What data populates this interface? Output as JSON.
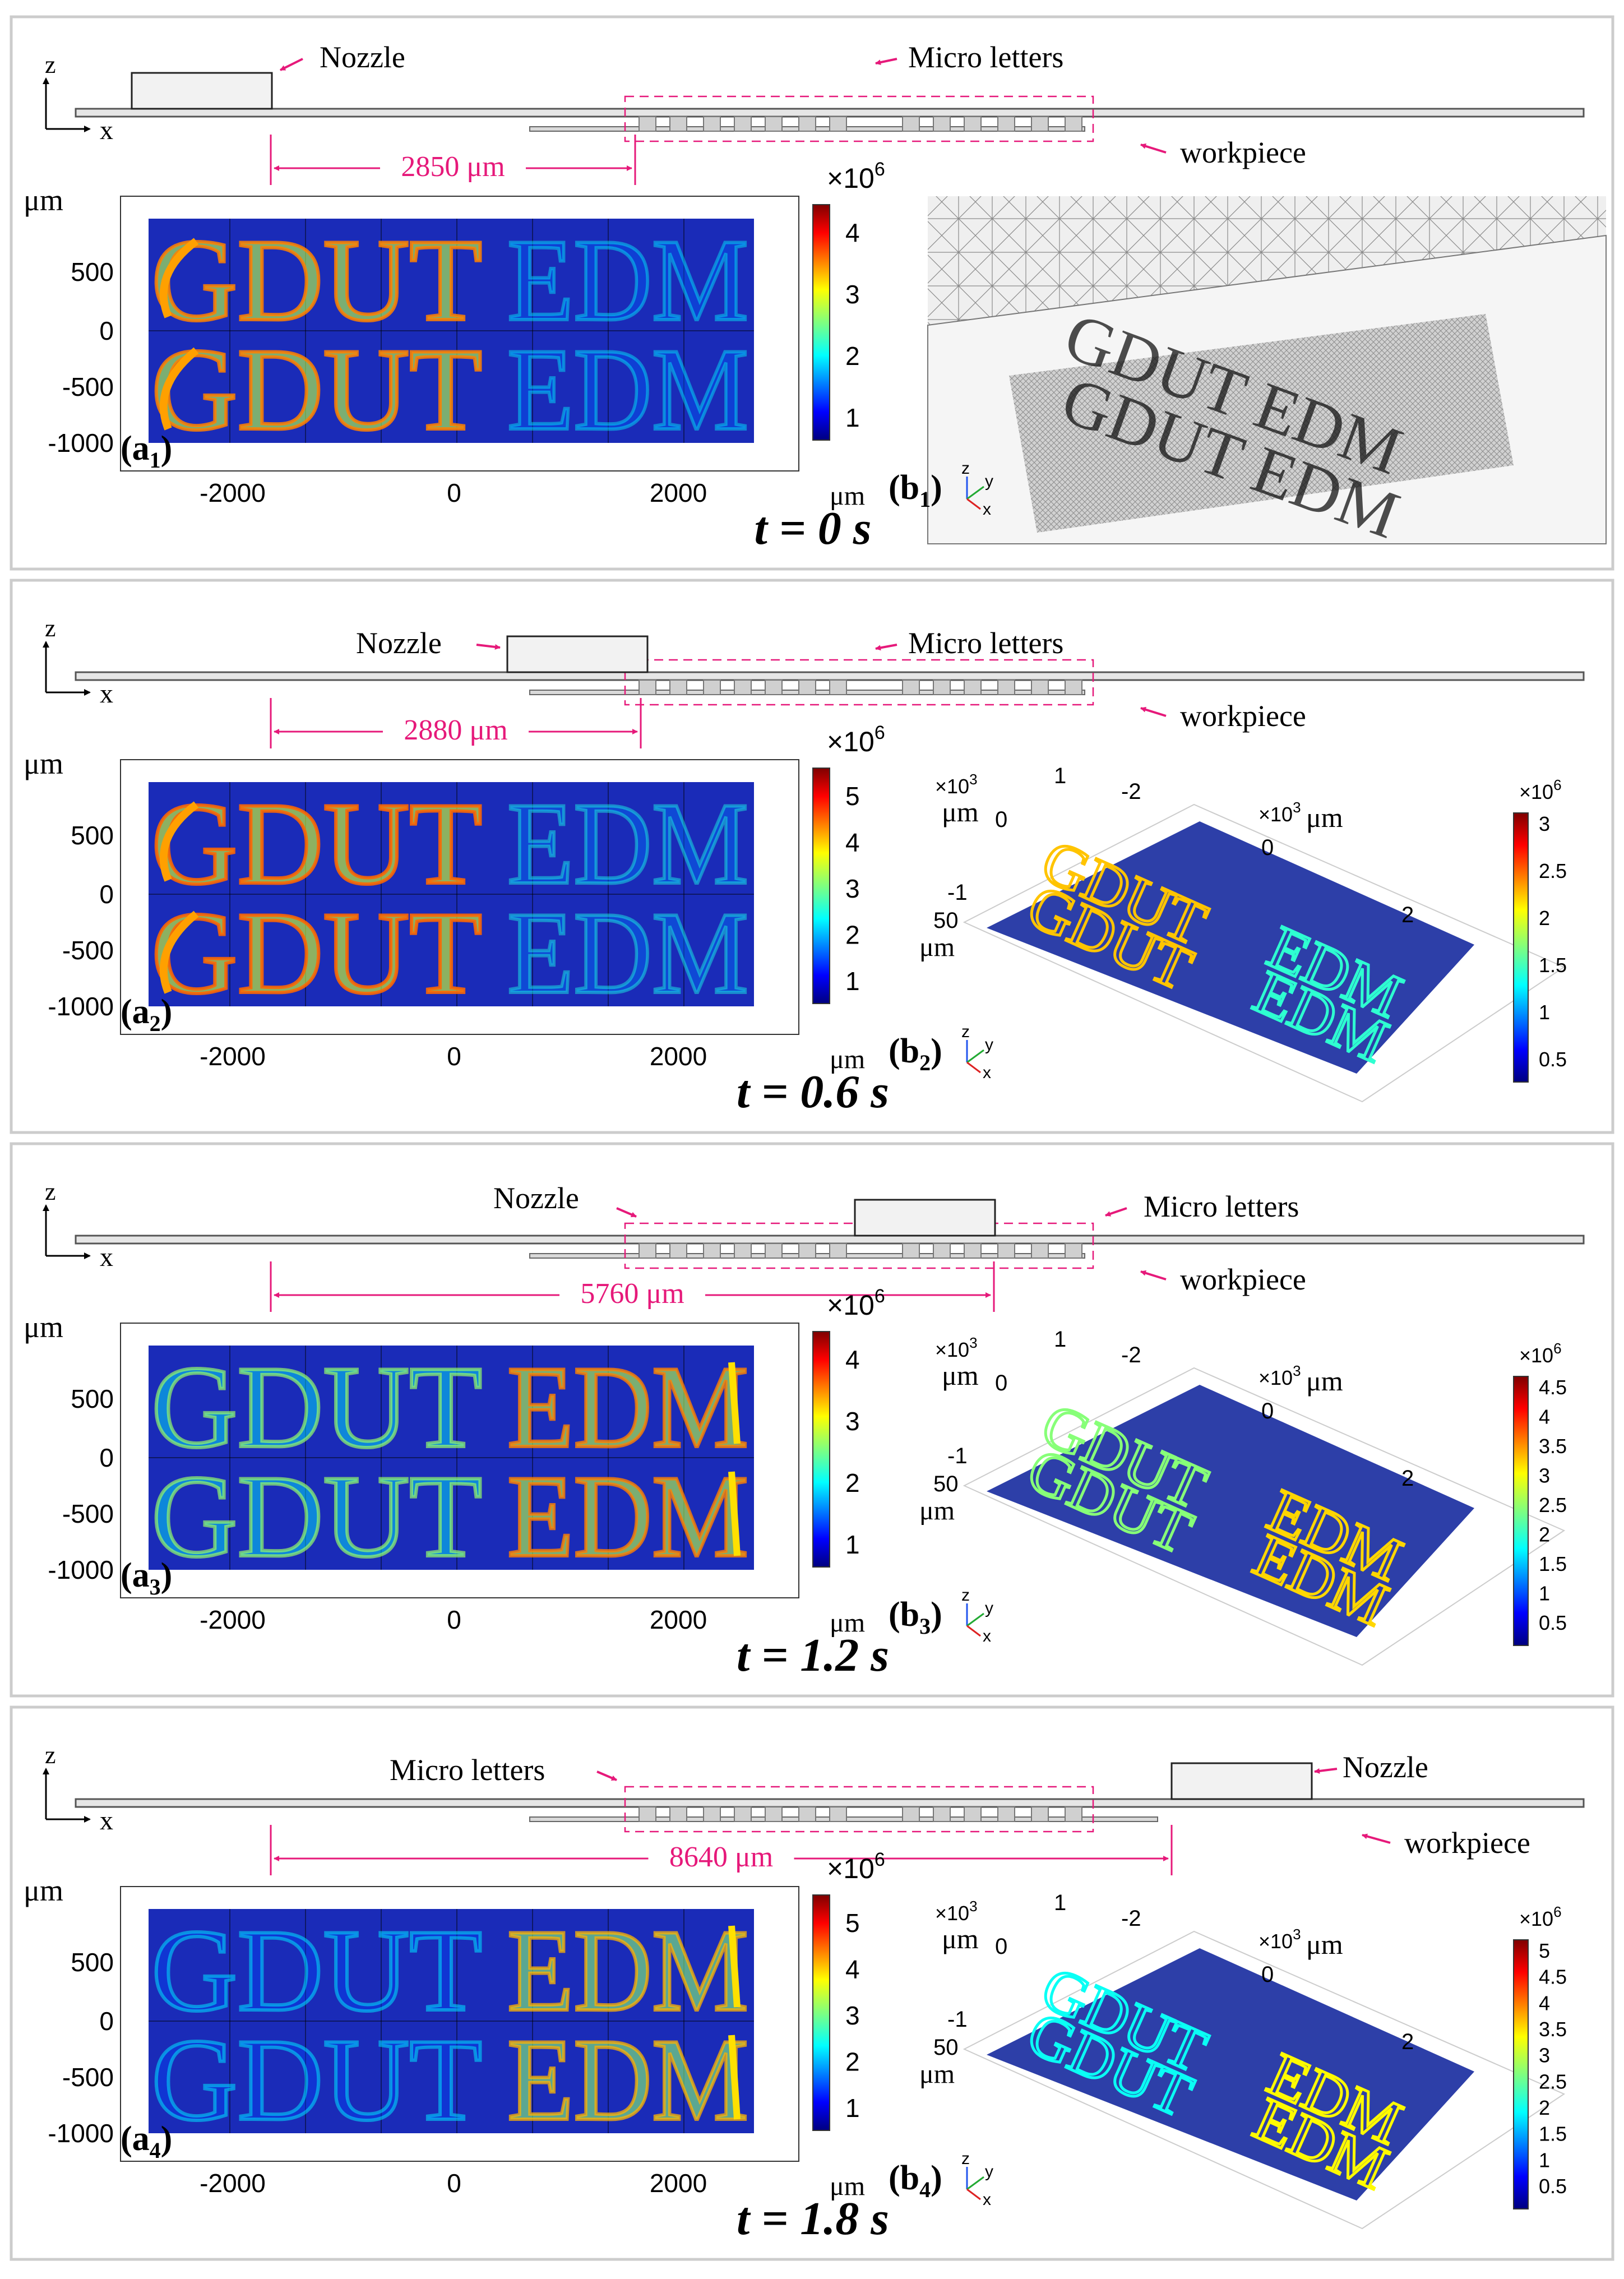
{
  "figure": {
    "nozzle_label": "Nozzle",
    "letters_label": "Micro letters",
    "workpiece_label": "workpiece",
    "axis_z": "z",
    "axis_x": "x",
    "unit_um": "μm",
    "exp_6": "×10",
    "exp_6_power": "6",
    "exp_3": "×10",
    "exp_3_power": "3",
    "map_yticks": [
      "500",
      "0",
      "-500",
      "-1000"
    ],
    "map_xticks": [
      "-2000",
      "0",
      "2000"
    ],
    "tri_x": "x",
    "tri_y": "y",
    "tri_z": "z",
    "text_row1": "GDUT",
    "text_row2": "EDM",
    "persp_ticks": {
      "t1": "1",
      "t0": "0",
      "tm1": "-1",
      "t50": "50",
      "tm2": "-2",
      "tr0": "0",
      "tr2": "2"
    },
    "time_prefix": "t",
    "time_eq": "=",
    "time_unit": "s",
    "colors": {
      "accent": "#e6197a",
      "map_bg": "#1a2bb8",
      "frame": "#cccccc"
    }
  },
  "panels": [
    {
      "id": 1,
      "dist_label": "2850 μm",
      "time_value": "0",
      "label_a": "a",
      "label_b": "b",
      "label_sub": "1",
      "colorbar_ticks": [
        "4",
        "3",
        "2",
        "1"
      ],
      "nozzle_pos_mm": 0.0,
      "gdut_intensity": 0.9,
      "edm_intensity": 0.15,
      "right_kind": "mesh"
    },
    {
      "id": 2,
      "dist_label": "2880 μm",
      "time_value": "0.6",
      "label_a": "a",
      "label_b": "b",
      "label_sub": "2",
      "colorbar_ticks": [
        "5",
        "4",
        "3",
        "2",
        "1"
      ],
      "right_ticks": [
        "3",
        "2.5",
        "2",
        "1.5",
        "1",
        "0.5"
      ],
      "gdut_intensity": 0.95,
      "edm_intensity": 0.2,
      "right_kind": "surface"
    },
    {
      "id": 3,
      "dist_label": "5760 μm",
      "time_value": "1.2",
      "label_a": "a",
      "label_b": "b",
      "label_sub": "3",
      "colorbar_ticks": [
        "4",
        "3",
        "2",
        "1"
      ],
      "right_ticks": [
        "4.5",
        "4",
        "3.5",
        "3",
        "2.5",
        "2",
        "1.5",
        "1",
        "0.5"
      ],
      "gdut_intensity": 0.45,
      "edm_intensity": 0.9,
      "right_kind": "surface"
    },
    {
      "id": 4,
      "dist_label": "8640 μm",
      "time_value": "1.8",
      "label_a": "a",
      "label_b": "b",
      "label_sub": "4",
      "colorbar_ticks": [
        "5",
        "4",
        "3",
        "2",
        "1"
      ],
      "right_ticks": [
        "5",
        "4.5",
        "4",
        "3.5",
        "3",
        "2.5",
        "2",
        "1.5",
        "1",
        "0.5"
      ],
      "gdut_intensity": 0.1,
      "edm_intensity": 0.8,
      "right_kind": "surface"
    }
  ]
}
